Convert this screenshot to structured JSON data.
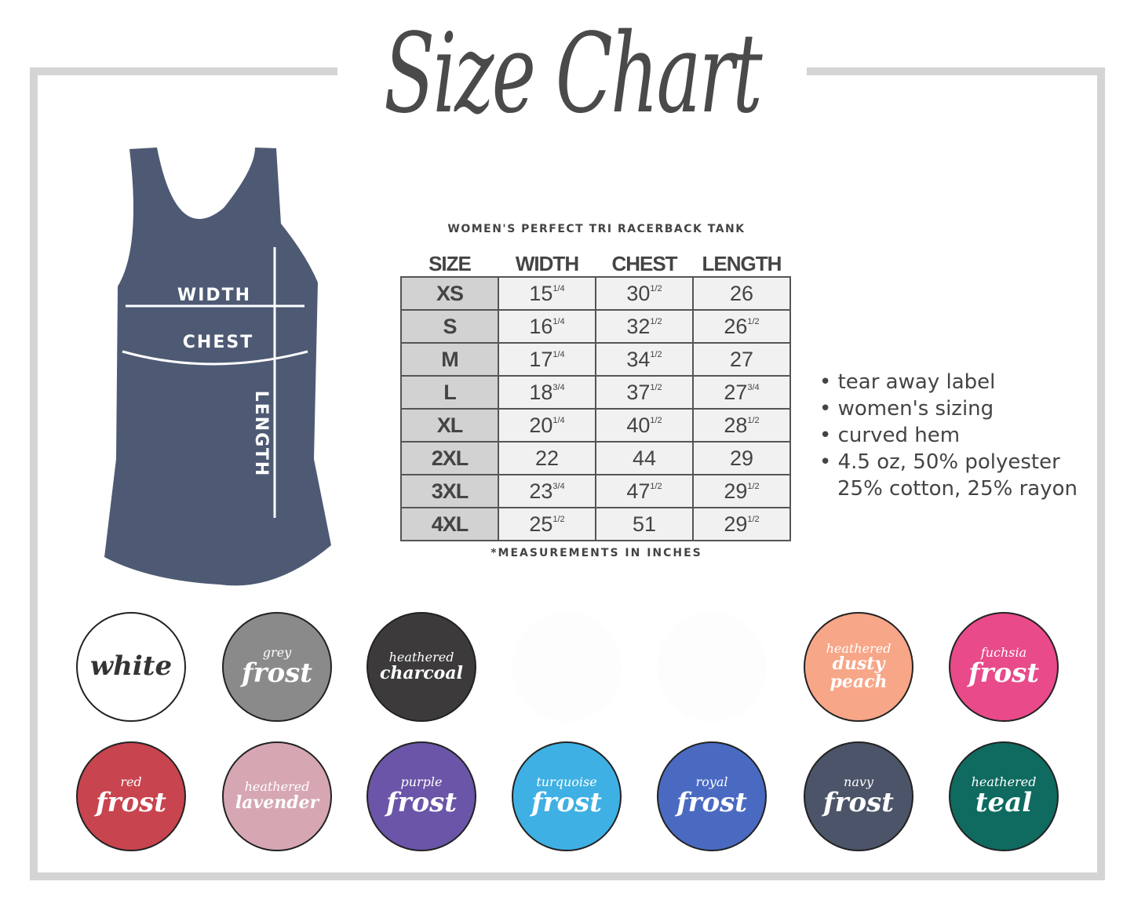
{
  "title": "Size Chart",
  "garment": {
    "labels": {
      "width": "WIDTH",
      "chest": "CHEST",
      "length": "LENGTH"
    },
    "color": "#4e5a74"
  },
  "product_name": "WOMEN'S PERFECT TRI RACERBACK TANK",
  "table": {
    "headers": [
      "SIZE",
      "WIDTH",
      "CHEST",
      "LENGTH"
    ],
    "rows": [
      {
        "size": "XS",
        "width": "15",
        "width_frac": "1/4",
        "chest": "30",
        "chest_frac": "1/2",
        "length": "26",
        "length_frac": ""
      },
      {
        "size": "S",
        "width": "16",
        "width_frac": "1/4",
        "chest": "32",
        "chest_frac": "1/2",
        "length": "26",
        "length_frac": "1/2"
      },
      {
        "size": "M",
        "width": "17",
        "width_frac": "1/4",
        "chest": "34",
        "chest_frac": "1/2",
        "length": "27",
        "length_frac": ""
      },
      {
        "size": "L",
        "width": "18",
        "width_frac": "3/4",
        "chest": "37",
        "chest_frac": "1/2",
        "length": "27",
        "length_frac": "3/4"
      },
      {
        "size": "XL",
        "width": "20",
        "width_frac": "1/4",
        "chest": "40",
        "chest_frac": "1/2",
        "length": "28",
        "length_frac": "1/2"
      },
      {
        "size": "2XL",
        "width": "22",
        "width_frac": "",
        "chest": "44",
        "chest_frac": "",
        "length": "29",
        "length_frac": ""
      },
      {
        "size": "3XL",
        "width": "23",
        "width_frac": "3/4",
        "chest": "47",
        "chest_frac": "1/2",
        "length": "29",
        "length_frac": "1/2"
      },
      {
        "size": "4XL",
        "width": "25",
        "width_frac": "1/2",
        "chest": "51",
        "chest_frac": "",
        "length": "29",
        "length_frac": "1/2"
      }
    ]
  },
  "note": "*MEASUREMENTS IN INCHES",
  "features": [
    "tear away label",
    "women's sizing",
    "curved hem",
    "4.5 oz, 50% polyester",
    "25% cotton, 25% rayon"
  ],
  "swatches": [
    {
      "small": "",
      "big": "white",
      "color": "#ffffff",
      "text": "#333333"
    },
    {
      "small": "grey",
      "big": "frost",
      "color": "#8a8a8a",
      "text": "#ffffff"
    },
    {
      "small": "heathered",
      "big": "charcoal",
      "color": "#3c3a3b",
      "text": "#ffffff"
    },
    {
      "small": "",
      "big": "",
      "color": "#fdfdfd",
      "text": "#fdfdfd"
    },
    {
      "small": "",
      "big": "",
      "color": "#fdfdfd",
      "text": "#fdfdfd"
    },
    {
      "small": "heathered",
      "big": "dusty peach",
      "color": "#f7a688",
      "text": "#ffffff"
    },
    {
      "small": "fuchsia",
      "big": "frost",
      "color": "#e84a8a",
      "text": "#ffffff"
    },
    {
      "small": "red",
      "big": "frost",
      "color": "#c8444e",
      "text": "#ffffff"
    },
    {
      "small": "heathered",
      "big": "lavender",
      "color": "#d6a7b3",
      "text": "#ffffff"
    },
    {
      "small": "purple",
      "big": "frost",
      "color": "#6a55a8",
      "text": "#ffffff"
    },
    {
      "small": "turquoise",
      "big": "frost",
      "color": "#3fb0e3",
      "text": "#ffffff"
    },
    {
      "small": "royal",
      "big": "frost",
      "color": "#4a6ac2",
      "text": "#ffffff"
    },
    {
      "small": "navy",
      "big": "frost",
      "color": "#4b5468",
      "text": "#ffffff"
    },
    {
      "small": "heathered",
      "big": "teal",
      "color": "#0f6a60",
      "text": "#ffffff"
    }
  ]
}
